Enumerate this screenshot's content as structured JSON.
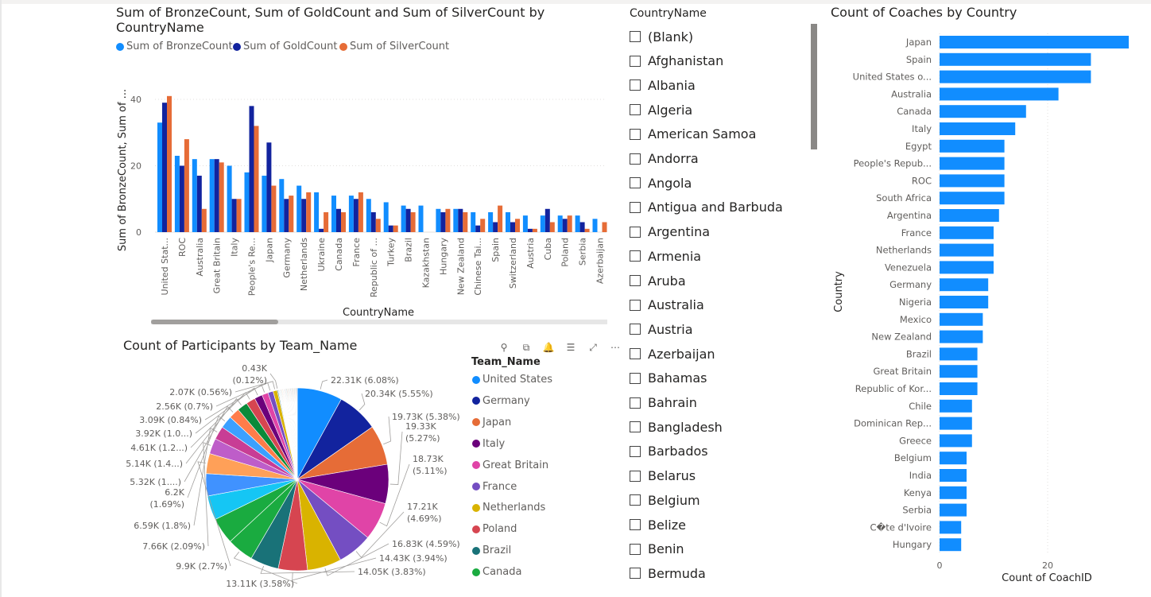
{
  "bar_chart": {
    "title_line1": "Sum of BronzeCount, Sum of GoldCount and Sum of SilverCount by",
    "title_line2": "CountryName",
    "legend": [
      {
        "label": "Sum of BronzeCount",
        "color": "#118DFF"
      },
      {
        "label": "Sum of GoldCount",
        "color": "#12239E"
      },
      {
        "label": "Sum of SilverCount",
        "color": "#E66C37"
      }
    ],
    "ylabel": "Sum of BronzeCount, Sum of ...",
    "xlabel": "CountryName",
    "yticks": [
      "0",
      "20",
      "40"
    ]
  },
  "pie_chart": {
    "title": "Count of Participants by Team_Name",
    "legend_title": "Team_Name",
    "legend": [
      {
        "label": "United States",
        "color": "#118DFF"
      },
      {
        "label": "Germany",
        "color": "#12239E"
      },
      {
        "label": "Japan",
        "color": "#E66C37"
      },
      {
        "label": "Italy",
        "color": "#6B007B"
      },
      {
        "label": "Great Britain",
        "color": "#E044A7"
      },
      {
        "label": "France",
        "color": "#744EC2"
      },
      {
        "label": "Netherlands",
        "color": "#D9B300"
      },
      {
        "label": "Poland",
        "color": "#D64550"
      },
      {
        "label": "Brazil",
        "color": "#197278"
      },
      {
        "label": "Canada",
        "color": "#1AAB40"
      }
    ],
    "toolbar_icons": [
      "pin-icon",
      "copy-icon",
      "bell-icon",
      "filter-icon",
      "expand-icon",
      "more-icon"
    ],
    "toolbar_glyphs": [
      "⚲",
      "⧉",
      "🔔",
      "☰",
      "⤢",
      "⋯"
    ]
  },
  "slicer": {
    "title": "CountryName",
    "items": [
      "(Blank)",
      "Afghanistan",
      "Albania",
      "Algeria",
      "American Samoa",
      "Andorra",
      "Angola",
      "Antigua and Barbuda",
      "Argentina",
      "Armenia",
      "Aruba",
      "Australia",
      "Austria",
      "Azerbaijan",
      "Bahamas",
      "Bahrain",
      "Bangladesh",
      "Barbados",
      "Belarus",
      "Belgium",
      "Belize",
      "Benin",
      "Bermuda"
    ]
  },
  "hbar_chart": {
    "title": "Count of Coaches by Country",
    "ylabel": "Country",
    "xlabel": "Count of CoachID",
    "xticks": [
      "0",
      "20"
    ],
    "color": "#118DFF"
  },
  "chart_data": [
    {
      "type": "bar",
      "title": "Sum of BronzeCount, Sum of GoldCount and Sum of SilverCount by CountryName",
      "xlabel": "CountryName",
      "ylabel": "Sum of BronzeCount, Sum of ...",
      "ylim": [
        0,
        48
      ],
      "grid": true,
      "legend_position": "top-left",
      "categories": [
        "United Stat...",
        "ROC",
        "Australia",
        "Great Britain",
        "Italy",
        "People's Re...",
        "Japan",
        "Germany",
        "Netherlands",
        "Ukraine",
        "Canada",
        "France",
        "Republic of ...",
        "Turkey",
        "Brazil",
        "Kazakhstan",
        "Hungary",
        "New Zealand",
        "Chinese Tai...",
        "Spain",
        "Switzerland",
        "Austria",
        "Cuba",
        "Poland",
        "Serbia",
        "Azerbaijan"
      ],
      "series": [
        {
          "name": "Sum of BronzeCount",
          "values": [
            33,
            23,
            22,
            22,
            20,
            18,
            17,
            16,
            14,
            12,
            11,
            11,
            10,
            9,
            8,
            8,
            7,
            7,
            6,
            6,
            6,
            5,
            5,
            5,
            5,
            4
          ]
        },
        {
          "name": "Sum of GoldCount",
          "values": [
            39,
            20,
            17,
            22,
            10,
            38,
            27,
            10,
            10,
            1,
            7,
            10,
            6,
            2,
            7,
            0,
            6,
            7,
            2,
            3,
            3,
            1,
            7,
            4,
            3,
            0
          ]
        },
        {
          "name": "Sum of SilverCount",
          "values": [
            41,
            28,
            7,
            21,
            10,
            32,
            14,
            11,
            12,
            6,
            6,
            12,
            4,
            2,
            6,
            0,
            7,
            6,
            4,
            8,
            4,
            1,
            3,
            5,
            1,
            3
          ]
        }
      ]
    },
    {
      "type": "pie",
      "title": "Count of Participants by Team_Name",
      "slices": [
        {
          "label": "United States",
          "value": 22310,
          "display": "22.31K (6.08%)"
        },
        {
          "label": "Germany",
          "value": 20340,
          "display": "20.34K (5.55%)"
        },
        {
          "label": "Japan",
          "value": 19730,
          "display": "19.73K (5.38%)"
        },
        {
          "label": "Italy",
          "value": 19330,
          "display": "19.33K (5.27%)"
        },
        {
          "label": "Great Britain",
          "value": 18730,
          "display": "18.73K (5.11%)"
        },
        {
          "label": "France",
          "value": 17210,
          "display": "17.21K (4.69%)"
        },
        {
          "label": "Netherlands",
          "value": 16830,
          "display": "16.83K (4.59%)"
        },
        {
          "label": "Poland",
          "value": 14430,
          "display": "14.43K (3.94%)"
        },
        {
          "label": "Brazil",
          "value": 14050,
          "display": "14.05K (3.83%)"
        },
        {
          "label": "Canada",
          "value": 13110,
          "display": "13.11K (3.58%)"
        },
        {
          "label": "",
          "value": 13000,
          "display": ""
        },
        {
          "label": "",
          "value": 12000,
          "display": ""
        },
        {
          "label": "",
          "value": 11000,
          "display": ""
        },
        {
          "label": "",
          "value": 9900,
          "display": "9.9K (2.7%)"
        },
        {
          "label": "",
          "value": 7660,
          "display": "7.66K (2.09%)"
        },
        {
          "label": "",
          "value": 6590,
          "display": "6.59K (1.8%)"
        },
        {
          "label": "",
          "value": 6200,
          "display": "6.2K (1.69%)"
        },
        {
          "label": "",
          "value": 5320,
          "display": "5.32K (1....)"
        },
        {
          "label": "",
          "value": 5140,
          "display": "5.14K (1.4...)"
        },
        {
          "label": "",
          "value": 4610,
          "display": "4.61K (1.2...)"
        },
        {
          "label": "",
          "value": 3920,
          "display": "3.92K (1.0...)"
        },
        {
          "label": "",
          "value": 3090,
          "display": "3.09K (0.84%)"
        },
        {
          "label": "",
          "value": 2560,
          "display": "2.56K (0.7%)"
        },
        {
          "label": "",
          "value": 2070,
          "display": "2.07K (0.56%)"
        },
        {
          "label": "",
          "value": 430,
          "display": "0.43K (0.12%)"
        }
      ]
    },
    {
      "type": "bar",
      "orientation": "horizontal",
      "title": "Count of Coaches by Country",
      "xlabel": "Count of CoachID",
      "ylabel": "Country",
      "xlim": [
        0,
        39
      ],
      "grid": true,
      "categories": [
        "Japan",
        "Spain",
        "United States o...",
        "Australia",
        "Canada",
        "Italy",
        "Egypt",
        "People's Repub...",
        "ROC",
        "South Africa",
        "Argentina",
        "France",
        "Netherlands",
        "Venezuela",
        "Germany",
        "Nigeria",
        "Mexico",
        "New Zealand",
        "Brazil",
        "Great Britain",
        "Republic of Kor...",
        "Chile",
        "Dominican Rep...",
        "Greece",
        "Belgium",
        "India",
        "Kenya",
        "Serbia",
        "C�te d'Ivoire",
        "Hungary"
      ],
      "values": [
        35,
        28,
        28,
        22,
        16,
        14,
        12,
        12,
        12,
        12,
        11,
        10,
        10,
        10,
        9,
        9,
        8,
        8,
        7,
        7,
        7,
        6,
        6,
        6,
        5,
        5,
        5,
        5,
        4,
        4
      ]
    }
  ]
}
